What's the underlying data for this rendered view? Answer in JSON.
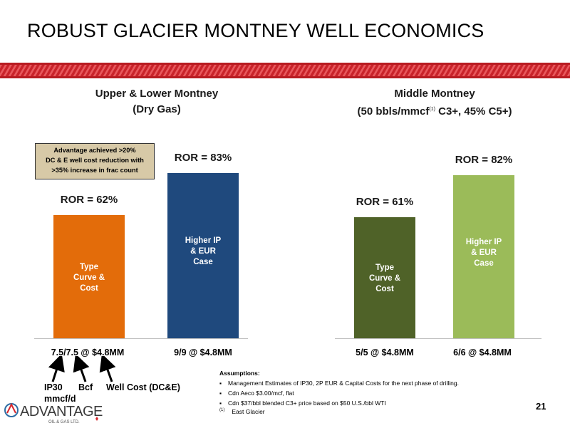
{
  "title": "ROBUST GLACIER MONTNEY WELL ECONOMICS",
  "colors": {
    "stripe": "#d9262c",
    "orange": "#e36c0a",
    "navy": "#1f497d",
    "olive": "#4f6228",
    "sage": "#9bbb59",
    "callout": "#d7c9a7"
  },
  "chart_data": [
    {
      "type": "bar",
      "title": "Upper & Lower Montney",
      "subtitle": "(Dry Gas)",
      "categories": [
        "7.5/7.5 @ $4.8MM",
        "9/9 @ $4.8MM"
      ],
      "series": [
        {
          "values": [
            62,
            83
          ]
        }
      ],
      "value_labels": [
        "ROR = 62%",
        "ROR = 83%"
      ],
      "bar_labels": [
        [
          "Type",
          "Curve &",
          "Cost"
        ],
        [
          "Higher IP",
          "& EUR",
          "Case"
        ]
      ],
      "colors": [
        "#e36c0a",
        "#1f497d"
      ],
      "ylim": [
        0,
        100
      ],
      "annotation": [
        "Advantage achieved >20%",
        "DC & E well cost reduction with",
        ">35% increase in frac count"
      ]
    },
    {
      "type": "bar",
      "title": "Middle Montney",
      "subtitle_pre": "(50 bbls/mmcf",
      "subtitle_mark": "(1)",
      "subtitle_post": " C3+, 45% C5+)",
      "categories": [
        "5/5 @ $4.8MM",
        "6/6 @ $4.8MM"
      ],
      "series": [
        {
          "values": [
            61,
            82
          ]
        }
      ],
      "value_labels": [
        "ROR = 61%",
        "ROR = 82%"
      ],
      "bar_labels": [
        [
          "Type",
          "Curve &",
          "Cost"
        ],
        [
          "Higher IP",
          "& EUR",
          "Case"
        ]
      ],
      "colors": [
        "#4f6228",
        "#9bbb59"
      ],
      "ylim": [
        0,
        100
      ]
    }
  ],
  "legend": {
    "ip30_1": "IP30",
    "ip30_2": "mmcf/d",
    "bcf": "Bcf",
    "wellcost": "Well Cost (DC&E)"
  },
  "assumptions": {
    "heading": "Assumptions:",
    "items": [
      "Management Estimates of IP30,  2P EUR & Capital Costs for the next phase of drilling.",
      "Cdn Aeco $3.00/mcf, flat",
      "Cdn $37/bbl blended C3+ price based on $50 U.S./bbl WTI"
    ]
  },
  "footnote": {
    "mark": "(1)",
    "text": "East Glacier"
  },
  "page_number": "21",
  "logo": {
    "name": "ADVANTAGE",
    "sub": "OIL & GAS LTD."
  }
}
